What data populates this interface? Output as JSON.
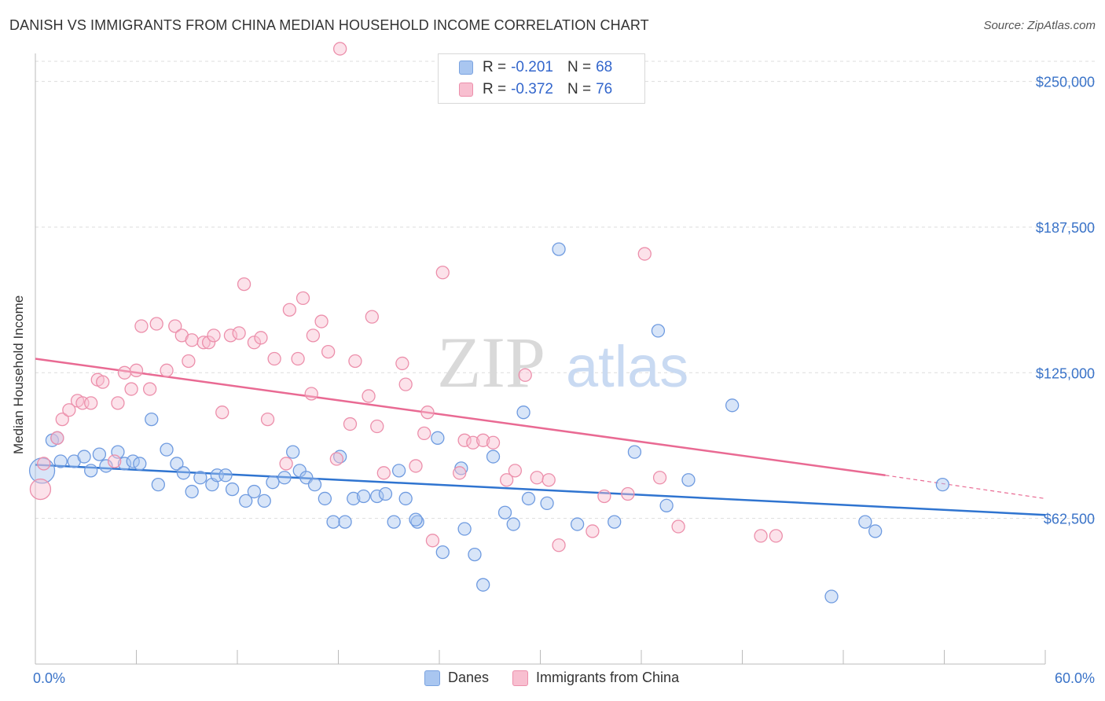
{
  "title": "DANISH VS IMMIGRANTS FROM CHINA MEDIAN HOUSEHOLD INCOME CORRELATION CHART",
  "source": "Source: ZipAtlas.com",
  "watermark": {
    "zip": "ZIP",
    "atlas": "atlas"
  },
  "legend": {
    "rows": [
      {
        "r_label": "R =",
        "r_value": "-0.201",
        "n_label": "N =",
        "n_value": "68",
        "color": "#a9c6f0",
        "border": "#7aa3e0"
      },
      {
        "r_label": "R =",
        "r_value": "-0.372",
        "n_label": "N =",
        "n_value": "76",
        "color": "#f8bfd0",
        "border": "#ec8fab"
      }
    ]
  },
  "bottom_legend": [
    {
      "label": "Danes",
      "color": "#a9c6f0",
      "border": "#7aa3e0"
    },
    {
      "label": "Immigrants from China",
      "color": "#f8bfd0",
      "border": "#ec8fab"
    }
  ],
  "chart_data": {
    "type": "scatter",
    "xlabel": "",
    "ylabel": "Median Household Income",
    "xlim": [
      0,
      60
    ],
    "ylim": [
      0,
      262000
    ],
    "x_tick_labels": [
      "0.0%",
      "60.0%"
    ],
    "y_ticks": [
      62500,
      125000,
      187500,
      250000
    ],
    "y_tick_labels": [
      "$62,500",
      "$125,000",
      "$187,500",
      "$250,000"
    ],
    "grid": true,
    "colors": {
      "danes": "#6f9be0",
      "china": "#ec8fab",
      "danes_line": "#2f74d0",
      "china_line": "#e96a93",
      "axis_label": "#3a73c8"
    },
    "series": [
      {
        "name": "Danes",
        "points": [
          [
            0.4,
            83000
          ],
          [
            1.0,
            96000
          ],
          [
            1.3,
            97000
          ],
          [
            1.5,
            87000
          ],
          [
            2.3,
            87000
          ],
          [
            2.9,
            89000
          ],
          [
            3.3,
            83000
          ],
          [
            3.8,
            90000
          ],
          [
            4.2,
            85000
          ],
          [
            4.9,
            91000
          ],
          [
            5.3,
            86000
          ],
          [
            5.8,
            87000
          ],
          [
            6.2,
            86000
          ],
          [
            6.9,
            105000
          ],
          [
            7.3,
            77000
          ],
          [
            7.8,
            92000
          ],
          [
            8.4,
            86000
          ],
          [
            8.8,
            82000
          ],
          [
            9.3,
            74000
          ],
          [
            9.8,
            80000
          ],
          [
            10.5,
            77000
          ],
          [
            10.8,
            81000
          ],
          [
            11.3,
            81000
          ],
          [
            11.7,
            75000
          ],
          [
            12.5,
            70000
          ],
          [
            13.0,
            74000
          ],
          [
            13.6,
            70000
          ],
          [
            14.1,
            78000
          ],
          [
            14.8,
            80000
          ],
          [
            15.3,
            91000
          ],
          [
            15.7,
            83000
          ],
          [
            16.1,
            80000
          ],
          [
            16.6,
            77000
          ],
          [
            17.2,
            71000
          ],
          [
            17.7,
            61000
          ],
          [
            18.1,
            89000
          ],
          [
            18.4,
            61000
          ],
          [
            18.9,
            71000
          ],
          [
            19.5,
            72000
          ],
          [
            20.3,
            72000
          ],
          [
            20.8,
            73000
          ],
          [
            21.3,
            61000
          ],
          [
            21.6,
            83000
          ],
          [
            22.0,
            71000
          ],
          [
            22.7,
            61000
          ],
          [
            22.6,
            62000
          ],
          [
            23.9,
            97000
          ],
          [
            24.2,
            48000
          ],
          [
            25.3,
            84000
          ],
          [
            25.5,
            58000
          ],
          [
            26.1,
            47000
          ],
          [
            26.6,
            34000
          ],
          [
            27.2,
            89000
          ],
          [
            27.9,
            65000
          ],
          [
            28.4,
            60000
          ],
          [
            29.0,
            108000
          ],
          [
            29.3,
            71000
          ],
          [
            30.4,
            69000
          ],
          [
            31.1,
            178000
          ],
          [
            32.2,
            60000
          ],
          [
            34.4,
            61000
          ],
          [
            35.6,
            91000
          ],
          [
            37.0,
            143000
          ],
          [
            37.5,
            68000
          ],
          [
            38.8,
            79000
          ],
          [
            41.4,
            111000
          ],
          [
            47.3,
            29000
          ],
          [
            49.3,
            61000
          ],
          [
            49.9,
            57000
          ],
          [
            53.9,
            77000
          ]
        ]
      },
      {
        "name": "Immigrants from China",
        "points": [
          [
            0.3,
            75000
          ],
          [
            0.5,
            86000
          ],
          [
            1.3,
            97000
          ],
          [
            1.6,
            105000
          ],
          [
            2.0,
            109000
          ],
          [
            2.5,
            113000
          ],
          [
            2.8,
            112000
          ],
          [
            3.3,
            112000
          ],
          [
            3.7,
            122000
          ],
          [
            4.0,
            121000
          ],
          [
            4.7,
            87000
          ],
          [
            4.9,
            112000
          ],
          [
            5.3,
            125000
          ],
          [
            5.7,
            118000
          ],
          [
            6.0,
            126000
          ],
          [
            6.3,
            145000
          ],
          [
            6.8,
            118000
          ],
          [
            7.2,
            146000
          ],
          [
            7.8,
            126000
          ],
          [
            8.3,
            145000
          ],
          [
            8.7,
            141000
          ],
          [
            9.1,
            130000
          ],
          [
            9.3,
            139000
          ],
          [
            10.0,
            138000
          ],
          [
            10.3,
            138000
          ],
          [
            10.6,
            141000
          ],
          [
            11.1,
            108000
          ],
          [
            11.6,
            141000
          ],
          [
            12.1,
            142000
          ],
          [
            12.4,
            163000
          ],
          [
            13.0,
            138000
          ],
          [
            13.4,
            140000
          ],
          [
            13.8,
            105000
          ],
          [
            14.2,
            131000
          ],
          [
            14.9,
            86000
          ],
          [
            15.1,
            152000
          ],
          [
            15.6,
            131000
          ],
          [
            15.9,
            157000
          ],
          [
            16.4,
            116000
          ],
          [
            16.5,
            141000
          ],
          [
            17.0,
            147000
          ],
          [
            17.4,
            134000
          ],
          [
            17.9,
            88000
          ],
          [
            18.1,
            264000
          ],
          [
            18.7,
            103000
          ],
          [
            19.0,
            130000
          ],
          [
            19.8,
            115000
          ],
          [
            20.0,
            149000
          ],
          [
            20.3,
            102000
          ],
          [
            20.7,
            82000
          ],
          [
            21.8,
            129000
          ],
          [
            22.0,
            120000
          ],
          [
            22.6,
            85000
          ],
          [
            23.1,
            99000
          ],
          [
            23.3,
            108000
          ],
          [
            23.6,
            53000
          ],
          [
            24.2,
            168000
          ],
          [
            25.2,
            82000
          ],
          [
            25.5,
            96000
          ],
          [
            26.0,
            95000
          ],
          [
            26.6,
            96000
          ],
          [
            27.2,
            95000
          ],
          [
            28.0,
            79000
          ],
          [
            28.5,
            83000
          ],
          [
            29.1,
            124000
          ],
          [
            29.8,
            80000
          ],
          [
            30.5,
            79000
          ],
          [
            31.1,
            51000
          ],
          [
            33.1,
            57000
          ],
          [
            33.8,
            72000
          ],
          [
            35.2,
            73000
          ],
          [
            36.2,
            176000
          ],
          [
            37.1,
            80000
          ],
          [
            38.2,
            59000
          ],
          [
            43.1,
            55000
          ],
          [
            44.0,
            55000
          ]
        ]
      }
    ],
    "trend_lines": [
      {
        "name": "Danes",
        "x0": 0,
        "y0": 85500,
        "x1": 60,
        "y1": 64000
      },
      {
        "name": "Immigrants from China",
        "x0": 0,
        "y0": 131000,
        "x1": 50.5,
        "y1": 81000,
        "dash_to": 60,
        "dash_y": 71000
      }
    ]
  }
}
